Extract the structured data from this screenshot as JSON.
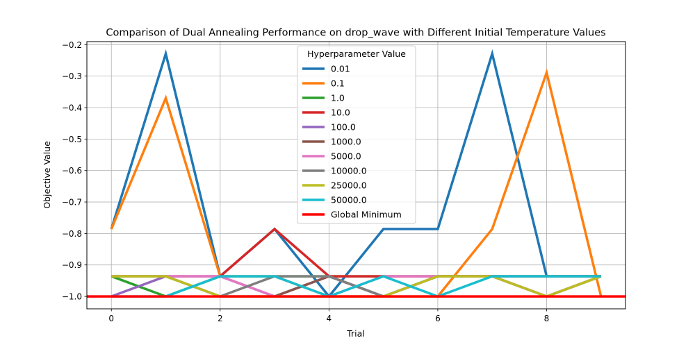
{
  "chart_data": {
    "type": "line",
    "title": "Comparison of Dual Annealing Performance on drop_wave with Different Initial Temperature Values",
    "xlabel": "Trial",
    "ylabel": "Objective Value",
    "xlim": [
      -0.45,
      9.45
    ],
    "ylim": [
      -1.0395,
      -0.1905
    ],
    "x_ticks": [
      0,
      2,
      4,
      6,
      8
    ],
    "y_ticks": [
      -1.0,
      -0.9,
      -0.8,
      -0.7,
      -0.6,
      -0.5,
      -0.4,
      -0.3,
      -0.2
    ],
    "y_tick_labels": [
      "−1.0",
      "−0.9",
      "−0.8",
      "−0.7",
      "−0.6",
      "−0.5",
      "−0.4",
      "−0.3",
      "−0.2"
    ],
    "grid": true,
    "legend": {
      "title": "Hyperparameter Value",
      "position": "upper-center"
    },
    "x": [
      0,
      1,
      2,
      3,
      4,
      5,
      6,
      7,
      8,
      9
    ],
    "series": [
      {
        "name": "0.01",
        "color": "#1f77b4",
        "values": [
          -0.786,
          -0.229,
          -0.936,
          -0.786,
          -1.0,
          -0.786,
          -0.786,
          -0.229,
          -0.936,
          -0.936
        ]
      },
      {
        "name": "0.1",
        "color": "#ff7f0e",
        "values": [
          -0.786,
          -0.37,
          -0.936,
          -0.936,
          -1.0,
          -1.0,
          -1.0,
          -0.786,
          -0.289,
          -1.0
        ]
      },
      {
        "name": "1.0",
        "color": "#2ca02c",
        "values": [
          -0.936,
          -1.0,
          -0.936,
          -0.936,
          -0.936,
          -0.936,
          -0.936,
          -0.936,
          -0.936,
          -0.936
        ]
      },
      {
        "name": "10.0",
        "color": "#d62728",
        "values": [
          -0.936,
          -0.936,
          -0.936,
          -0.786,
          -0.936,
          -0.936,
          -0.936,
          -0.936,
          -0.936,
          -0.936
        ]
      },
      {
        "name": "100.0",
        "color": "#9467bd",
        "values": [
          -1.0,
          -0.936,
          -0.936,
          -1.0,
          -0.936,
          -1.0,
          -0.936,
          -0.936,
          -1.0,
          -0.936
        ]
      },
      {
        "name": "1000.0",
        "color": "#8c564b",
        "values": [
          -0.936,
          -0.936,
          -1.0,
          -1.0,
          -0.936,
          -1.0,
          -0.936,
          -0.936,
          -0.936,
          -0.936
        ]
      },
      {
        "name": "5000.0",
        "color": "#e377c2",
        "values": [
          -0.936,
          -0.936,
          -0.936,
          -1.0,
          -1.0,
          -0.936,
          -0.936,
          -0.936,
          -1.0,
          -0.936
        ]
      },
      {
        "name": "10000.0",
        "color": "#7f7f7f",
        "values": [
          -0.936,
          -0.936,
          -1.0,
          -0.936,
          -0.936,
          -1.0,
          -0.936,
          -0.936,
          -1.0,
          -0.936
        ]
      },
      {
        "name": "25000.0",
        "color": "#bcbd22",
        "values": [
          -0.936,
          -0.936,
          -1.0,
          -1.0,
          -1.0,
          -1.0,
          -0.936,
          -0.936,
          -1.0,
          -0.936
        ]
      },
      {
        "name": "50000.0",
        "color": "#17becf",
        "values": [
          -1.0,
          -1.0,
          -0.936,
          -0.936,
          -1.0,
          -0.936,
          -1.0,
          -0.936,
          -0.936,
          -0.936
        ]
      },
      {
        "name": "Global Minimum",
        "color": "#ff0000",
        "type": "hline",
        "value": -1.0
      }
    ]
  }
}
